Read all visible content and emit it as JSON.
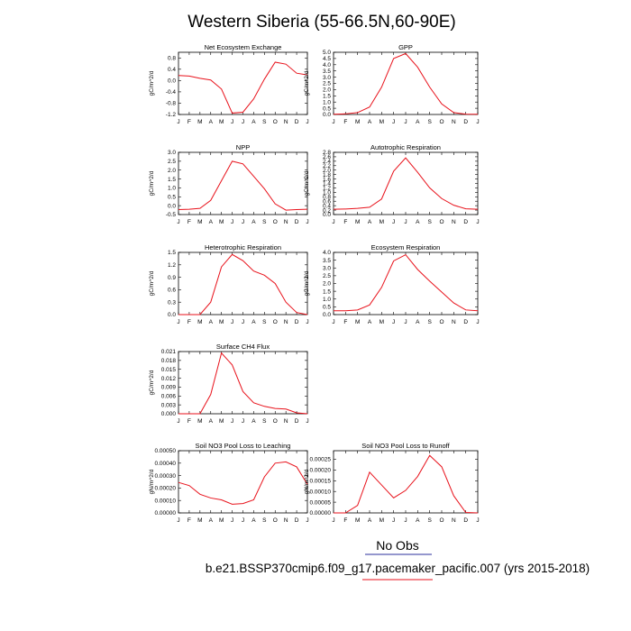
{
  "figure": {
    "title": "Western Siberia (55-66.5N,60-90E)",
    "legend_label": "No Obs",
    "caption": "b.e21.BSSP370cmip6.f09_g17.pacemaker_pacific.007 (yrs 2015-2018)",
    "line_color": "#e8121b",
    "legend_line_color": "#2b2f9e",
    "caption_line_color": "#e8121b"
  },
  "chart_data": [
    {
      "type": "line",
      "title": "Net Ecosystem Exchange",
      "ylabel": "gC/m^2/d",
      "categories": [
        "J",
        "F",
        "M",
        "A",
        "M",
        "J",
        "J",
        "A",
        "S",
        "O",
        "N",
        "D",
        "J"
      ],
      "ylim": [
        -1.2,
        1.0
      ],
      "yticks": [
        -1.2,
        -0.8,
        -0.4,
        0.0,
        0.4,
        0.8
      ],
      "ytick_labels": [
        "-1.2",
        "-0.8",
        "-0.4",
        "0.0",
        "0.4",
        "0.8"
      ],
      "series": [
        {
          "values": [
            0.18,
            0.16,
            0.08,
            0.02,
            -0.3,
            -1.15,
            -1.12,
            -0.65,
            0.05,
            0.65,
            0.58,
            0.26,
            0.2
          ]
        }
      ]
    },
    {
      "type": "line",
      "title": "GPP",
      "ylabel": "gC/m^2/d",
      "categories": [
        "J",
        "F",
        "M",
        "A",
        "M",
        "J",
        "J",
        "A",
        "S",
        "O",
        "N",
        "D",
        "J"
      ],
      "ylim": [
        0.0,
        5.0
      ],
      "yticks": [
        0.0,
        0.5,
        1.0,
        1.5,
        2.0,
        2.5,
        3.0,
        3.5,
        4.0,
        4.5,
        5.0
      ],
      "ytick_labels": [
        "0.0",
        "0.5",
        "1.0",
        "1.5",
        "2.0",
        "2.5",
        "3.0",
        "3.5",
        "4.0",
        "4.5",
        "5.0"
      ],
      "series": [
        {
          "values": [
            0.02,
            0.05,
            0.15,
            0.6,
            2.2,
            4.5,
            4.9,
            3.8,
            2.2,
            0.85,
            0.15,
            0.03,
            0.02
          ]
        }
      ]
    },
    {
      "type": "line",
      "title": "NPP",
      "ylabel": "gC/m^2/d",
      "categories": [
        "J",
        "F",
        "M",
        "A",
        "M",
        "J",
        "J",
        "A",
        "S",
        "O",
        "N",
        "D",
        "J"
      ],
      "ylim": [
        -0.5,
        3.0
      ],
      "yticks": [
        -0.5,
        0.0,
        0.5,
        1.0,
        1.5,
        2.0,
        2.5,
        3.0
      ],
      "ytick_labels": [
        "-0.5",
        "0.0",
        "0.5",
        "1.0",
        "1.5",
        "2.0",
        "2.5",
        "3.0"
      ],
      "series": [
        {
          "values": [
            -0.22,
            -0.2,
            -0.15,
            0.3,
            1.4,
            2.5,
            2.35,
            1.65,
            0.95,
            0.1,
            -0.25,
            -0.22,
            -0.2
          ]
        }
      ]
    },
    {
      "type": "line",
      "title": "Autotrophic Respiration",
      "ylabel": "gC/m^2/d",
      "categories": [
        "J",
        "F",
        "M",
        "A",
        "M",
        "J",
        "J",
        "A",
        "S",
        "O",
        "N",
        "D",
        "J"
      ],
      "ylim": [
        0.0,
        2.8
      ],
      "yticks": [
        0.0,
        0.2,
        0.4,
        0.6,
        0.8,
        1.0,
        1.2,
        1.4,
        1.6,
        1.8,
        2.0,
        2.2,
        2.4,
        2.6,
        2.8
      ],
      "ytick_labels": [
        "0.0",
        "0.2",
        "0.4",
        "0.6",
        "0.8",
        "1.0",
        "1.2",
        "1.4",
        "1.6",
        "1.8",
        "2.0",
        "2.2",
        "2.4",
        "2.6",
        "2.8"
      ],
      "series": [
        {
          "values": [
            0.24,
            0.25,
            0.28,
            0.33,
            0.7,
            1.95,
            2.55,
            1.9,
            1.2,
            0.72,
            0.42,
            0.26,
            0.24
          ]
        }
      ]
    },
    {
      "type": "line",
      "title": "Heterotrophic Respiration",
      "ylabel": "gC/m^2/d",
      "categories": [
        "J",
        "F",
        "M",
        "A",
        "M",
        "J",
        "J",
        "A",
        "S",
        "O",
        "N",
        "D",
        "J"
      ],
      "ylim": [
        0.0,
        1.5
      ],
      "yticks": [
        0.0,
        0.3,
        0.6,
        0.9,
        1.2,
        1.5
      ],
      "ytick_labels": [
        "0.0",
        "0.3",
        "0.6",
        "0.9",
        "1.2",
        "1.5"
      ],
      "series": [
        {
          "values": [
            0.0,
            0.0,
            0.0,
            0.3,
            1.15,
            1.45,
            1.3,
            1.05,
            0.95,
            0.75,
            0.3,
            0.05,
            0.0
          ]
        }
      ]
    },
    {
      "type": "line",
      "title": "Ecosystem Respiration",
      "ylabel": "gC/m^2/d",
      "categories": [
        "J",
        "F",
        "M",
        "A",
        "M",
        "J",
        "J",
        "A",
        "S",
        "O",
        "N",
        "D",
        "J"
      ],
      "ylim": [
        0.0,
        4.0
      ],
      "yticks": [
        0.0,
        0.5,
        1.0,
        1.5,
        2.0,
        2.5,
        3.0,
        3.5,
        4.0
      ],
      "ytick_labels": [
        "0.0",
        "0.5",
        "1.0",
        "1.5",
        "2.0",
        "2.5",
        "3.0",
        "3.5",
        "4.0"
      ],
      "series": [
        {
          "values": [
            0.25,
            0.25,
            0.3,
            0.62,
            1.75,
            3.45,
            3.85,
            2.9,
            2.15,
            1.45,
            0.75,
            0.3,
            0.25
          ]
        }
      ]
    },
    {
      "type": "line",
      "title": "Surface CH4 Flux",
      "ylabel": "gC/m^2/d",
      "categories": [
        "J",
        "F",
        "M",
        "A",
        "M",
        "J",
        "J",
        "A",
        "S",
        "O",
        "N",
        "D",
        "J"
      ],
      "ylim": [
        0.0,
        0.021
      ],
      "yticks": [
        0.0,
        0.003,
        0.006,
        0.009,
        0.012,
        0.015,
        0.018,
        0.021
      ],
      "ytick_labels": [
        "0.000",
        "0.003",
        "0.006",
        "0.009",
        "0.012",
        "0.015",
        "0.018",
        "0.021"
      ],
      "series": [
        {
          "values": [
            0.0,
            0.0,
            0.0,
            0.0065,
            0.0205,
            0.0165,
            0.0075,
            0.0037,
            0.0025,
            0.0018,
            0.0016,
            0.0003,
            0.0
          ]
        }
      ]
    },
    {
      "type": "line",
      "title": "Soil NO3 Pool Loss to Leaching",
      "ylabel": "gN/m^2/d",
      "categories": [
        "J",
        "F",
        "M",
        "A",
        "M",
        "J",
        "J",
        "A",
        "S",
        "O",
        "N",
        "D",
        "J"
      ],
      "ylim": [
        0.0,
        0.0005
      ],
      "yticks": [
        0.0,
        0.0001,
        0.0002,
        0.0003,
        0.0004,
        0.0005
      ],
      "ytick_labels": [
        "0.00000",
        "0.00010",
        "0.00020",
        "0.00030",
        "0.00040",
        "0.00050"
      ],
      "series": [
        {
          "values": [
            0.000245,
            0.00022,
            0.00015,
            0.00012,
            0.000105,
            7e-05,
            7.5e-05,
            0.000105,
            0.00029,
            0.0004,
            0.00041,
            0.00037,
            0.00023
          ]
        }
      ]
    },
    {
      "type": "line",
      "title": "Soil NO3 Pool Loss to Runoff",
      "ylabel": "gN/m^2/d",
      "categories": [
        "J",
        "F",
        "M",
        "A",
        "M",
        "J",
        "J",
        "A",
        "S",
        "O",
        "N",
        "D",
        "J"
      ],
      "ylim": [
        0.0,
        0.00029
      ],
      "yticks": [
        0.0,
        5e-05,
        0.0001,
        0.00015,
        0.0002,
        0.00025
      ],
      "ytick_labels": [
        "0.00000",
        "0.00005",
        "0.00010",
        "0.00015",
        "0.00020",
        "0.00025"
      ],
      "series": [
        {
          "values": [
            0.0,
            0.0,
            3.5e-05,
            0.00019,
            0.00013,
            7e-05,
            0.000105,
            0.00017,
            0.000268,
            0.000215,
            8e-05,
            2e-06,
            0.0
          ]
        }
      ]
    }
  ]
}
